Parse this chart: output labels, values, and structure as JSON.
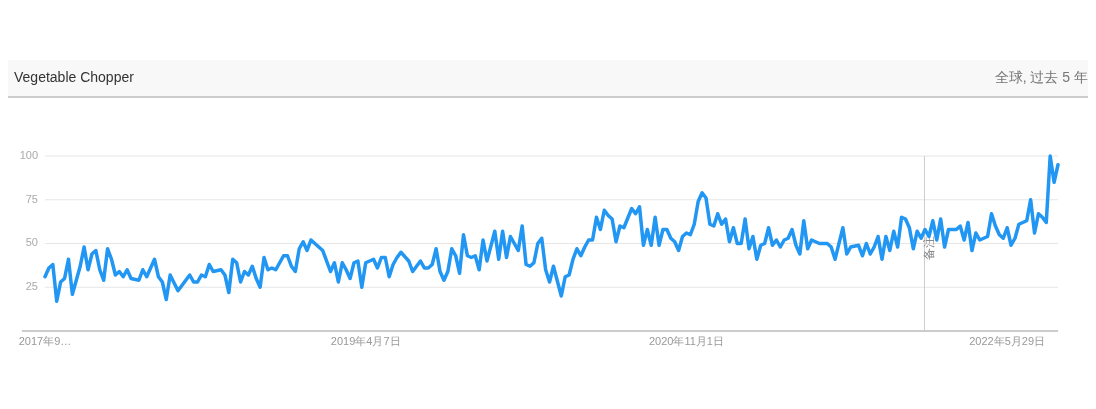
{
  "chart_data": {
    "type": "line",
    "title": "Vegetable Chopper",
    "subtitle": "全球, 过去 5 年",
    "xlim": [
      "2017-09-10",
      "2022-08-28"
    ],
    "xticks": [
      {
        "value": "2017-09-10",
        "label": "2017年9…"
      },
      {
        "value": "2019-04-07",
        "label": "2019年4月7日"
      },
      {
        "value": "2020-11-01",
        "label": "2020年11月1日"
      },
      {
        "value": "2022-05-29",
        "label": "2022年5月29日"
      }
    ],
    "ylim": [
      0,
      100
    ],
    "yticks": [
      25,
      50,
      75,
      100
    ],
    "grid": "y",
    "marker": "none",
    "line_style": "solid",
    "ref_lines": [
      {
        "axis": "x",
        "value": "2022-01-01",
        "label": "备注",
        "color": "#cccccc"
      }
    ],
    "series": [
      {
        "color": "#2196f3",
        "x": [
          "2017-09-10",
          "2017-09-17",
          "2017-09-24",
          "2017-10-01",
          "2017-10-08",
          "2017-10-15",
          "2017-10-22",
          "2017-10-29",
          "2017-11-12",
          "2017-11-19",
          "2017-11-26",
          "2017-12-03",
          "2017-12-10",
          "2017-12-17",
          "2017-12-24",
          "2017-12-31",
          "2018-01-07",
          "2018-01-14",
          "2018-01-21",
          "2018-01-28",
          "2018-02-04",
          "2018-02-11",
          "2018-02-25",
          "2018-03-04",
          "2018-03-11",
          "2018-03-25",
          "2018-04-01",
          "2018-04-08",
          "2018-04-15",
          "2018-04-22",
          "2018-05-06",
          "2018-05-13",
          "2018-05-27",
          "2018-06-03",
          "2018-06-10",
          "2018-06-17",
          "2018-06-24",
          "2018-07-01",
          "2018-07-08",
          "2018-07-22",
          "2018-07-29",
          "2018-08-05",
          "2018-08-12",
          "2018-08-19",
          "2018-08-26",
          "2018-09-02",
          "2018-09-09",
          "2018-09-16",
          "2018-09-23",
          "2018-09-30",
          "2018-10-07",
          "2018-10-14",
          "2018-10-21",
          "2018-10-28",
          "2018-11-11",
          "2018-11-18",
          "2018-11-25",
          "2018-12-02",
          "2018-12-09",
          "2018-12-16",
          "2018-12-23",
          "2018-12-30",
          "2019-01-06",
          "2019-01-13",
          "2019-01-20",
          "2019-02-03",
          "2019-02-10",
          "2019-02-17",
          "2019-02-24",
          "2019-03-03",
          "2019-03-10",
          "2019-03-17",
          "2019-03-24",
          "2019-03-31",
          "2019-04-07",
          "2019-04-14",
          "2019-04-21",
          "2019-04-28",
          "2019-05-05",
          "2019-05-12",
          "2019-05-19",
          "2019-05-26",
          "2019-06-02",
          "2019-06-09",
          "2019-06-23",
          "2019-06-30",
          "2019-07-14",
          "2019-07-21",
          "2019-07-28",
          "2019-08-04",
          "2019-08-11",
          "2019-08-18",
          "2019-08-25",
          "2019-09-01",
          "2019-09-08",
          "2019-09-15",
          "2019-09-22",
          "2019-09-29",
          "2019-10-06",
          "2019-10-13",
          "2019-10-20",
          "2019-10-27",
          "2019-11-03",
          "2019-11-10",
          "2019-11-24",
          "2019-12-01",
          "2019-12-08",
          "2019-12-15",
          "2019-12-22",
          "2020-01-05",
          "2020-01-12",
          "2020-01-19",
          "2020-01-26",
          "2020-02-02",
          "2020-02-09",
          "2020-02-16",
          "2020-02-23",
          "2020-03-01",
          "2020-03-08",
          "2020-03-22",
          "2020-03-29",
          "2020-04-05",
          "2020-04-12",
          "2020-04-19",
          "2020-04-26",
          "2020-05-03",
          "2020-05-10",
          "2020-05-17",
          "2020-05-24",
          "2020-05-31",
          "2020-06-07",
          "2020-06-14",
          "2020-06-21",
          "2020-06-28",
          "2020-07-05",
          "2020-07-12",
          "2020-07-26",
          "2020-08-02",
          "2020-08-09",
          "2020-08-16",
          "2020-08-23",
          "2020-08-30",
          "2020-09-06",
          "2020-09-13",
          "2020-09-20",
          "2020-09-27",
          "2020-10-04",
          "2020-10-11",
          "2020-10-18",
          "2020-10-25",
          "2020-11-01",
          "2020-11-08",
          "2020-11-15",
          "2020-11-22",
          "2020-11-29",
          "2020-12-06",
          "2020-12-13",
          "2020-12-20",
          "2020-12-27",
          "2021-01-03",
          "2021-01-10",
          "2021-01-17",
          "2021-01-24",
          "2021-01-31",
          "2021-02-07",
          "2021-02-14",
          "2021-02-21",
          "2021-02-28",
          "2021-03-07",
          "2021-03-14",
          "2021-03-21",
          "2021-03-28",
          "2021-04-04",
          "2021-04-11",
          "2021-04-18",
          "2021-04-25",
          "2021-05-02",
          "2021-05-09",
          "2021-05-16",
          "2021-05-23",
          "2021-05-30",
          "2021-06-06",
          "2021-06-13",
          "2021-06-27",
          "2021-07-11",
          "2021-07-18",
          "2021-07-25",
          "2021-08-08",
          "2021-08-15",
          "2021-08-22",
          "2021-09-05",
          "2021-09-12",
          "2021-09-19",
          "2021-09-26",
          "2021-10-03",
          "2021-10-10",
          "2021-10-17",
          "2021-10-24",
          "2021-10-31",
          "2021-11-07",
          "2021-11-14",
          "2021-11-21",
          "2021-11-28",
          "2021-12-05",
          "2021-12-12",
          "2021-12-19",
          "2021-12-26",
          "2022-01-02",
          "2022-01-09",
          "2022-01-16",
          "2022-01-23",
          "2022-01-30",
          "2022-02-06",
          "2022-02-13",
          "2022-02-27",
          "2022-03-06",
          "2022-03-13",
          "2022-03-20",
          "2022-03-27",
          "2022-04-03",
          "2022-04-10",
          "2022-04-24",
          "2022-05-01",
          "2022-05-08",
          "2022-05-15",
          "2022-05-22",
          "2022-05-29",
          "2022-06-05",
          "2022-06-12",
          "2022-06-19",
          "2022-07-03",
          "2022-07-10",
          "2022-07-17",
          "2022-07-24",
          "2022-07-31",
          "2022-08-07",
          "2022-08-14",
          "2022-08-21",
          "2022-08-28"
        ],
        "values": [
          31,
          36,
          38,
          17,
          28,
          30,
          41,
          21,
          37,
          48,
          35,
          44,
          46,
          35,
          29,
          47,
          41,
          32,
          34,
          31,
          35,
          30,
          29,
          35,
          31,
          41,
          31,
          28,
          18,
          32,
          23,
          26,
          32,
          28,
          28,
          32,
          31,
          38,
          34,
          35,
          32,
          22,
          41,
          39,
          28,
          34,
          32,
          37,
          30,
          25,
          42,
          35,
          36,
          35,
          43,
          43,
          37,
          34,
          47,
          51,
          46,
          52,
          50,
          48,
          46,
          34,
          39,
          28,
          39,
          35,
          30,
          39,
          40,
          25,
          39,
          40,
          41,
          36,
          42,
          42,
          31,
          38,
          42,
          45,
          40,
          34,
          40,
          36,
          36,
          38,
          47,
          34,
          29,
          34,
          47,
          43,
          33,
          55,
          43,
          42,
          43,
          35,
          52,
          40,
          57,
          41,
          57,
          42,
          54,
          46,
          60,
          38,
          37,
          39,
          50,
          53,
          35,
          28,
          37,
          20,
          31,
          32,
          41,
          47,
          43,
          48,
          52,
          52,
          65,
          58,
          69,
          66,
          64,
          51,
          60,
          59,
          70,
          67,
          71,
          49,
          58,
          49,
          65,
          49,
          58,
          58,
          53,
          51,
          46,
          54,
          56,
          55,
          61,
          74,
          79,
          76,
          61,
          60,
          67,
          61,
          64,
          51,
          59,
          50,
          50,
          64,
          47,
          54,
          41,
          49,
          50,
          59,
          49,
          52,
          48,
          52,
          53,
          58,
          49,
          44,
          63,
          47,
          52,
          50,
          50,
          48,
          41,
          59,
          44,
          48,
          49,
          43,
          50,
          44,
          48,
          54,
          41,
          54,
          46,
          57,
          48,
          65,
          64,
          59,
          47,
          57,
          53,
          58,
          54,
          63,
          52,
          64,
          48,
          58,
          58,
          60,
          52,
          62,
          46,
          56,
          52,
          54,
          67,
          60,
          55,
          53,
          59,
          49,
          53,
          61,
          63,
          75,
          56,
          67,
          65,
          62,
          100,
          85,
          95
        ]
      }
    ]
  }
}
